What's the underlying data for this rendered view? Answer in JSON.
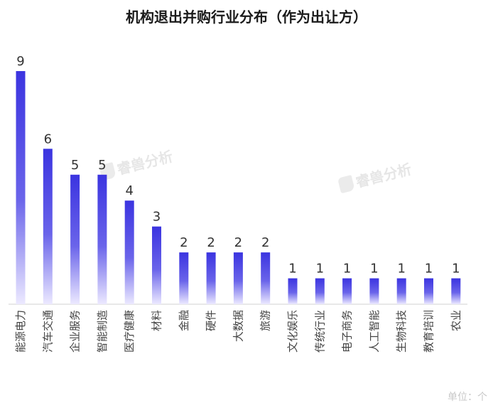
{
  "chart_data": {
    "type": "bar",
    "title": "机构退出并购行业分布（作为出让方）",
    "unit_label": "单位：个",
    "watermark_text": "睿兽分析",
    "bar_color_top": "#3b34e0",
    "bar_color_bottom": "#ece9ff",
    "ylim": [
      0,
      9
    ],
    "categories": [
      "能源电力",
      "汽车交通",
      "企业服务",
      "智能制造",
      "医疗健康",
      "材料",
      "金融",
      "硬件",
      "大数据",
      "旅游",
      "文化娱乐",
      "传统行业",
      "电子商务",
      "人工智能",
      "生物科技",
      "教育培训",
      "农业"
    ],
    "values": [
      9,
      6,
      5,
      5,
      4,
      3,
      2,
      2,
      2,
      2,
      1,
      1,
      1,
      1,
      1,
      1,
      1
    ],
    "value_labels": [
      "9",
      "6",
      "5",
      "5",
      "4",
      "3",
      "2",
      "2",
      "2",
      "2",
      "1",
      "1",
      "1",
      "1",
      "1",
      "1",
      "1"
    ]
  }
}
